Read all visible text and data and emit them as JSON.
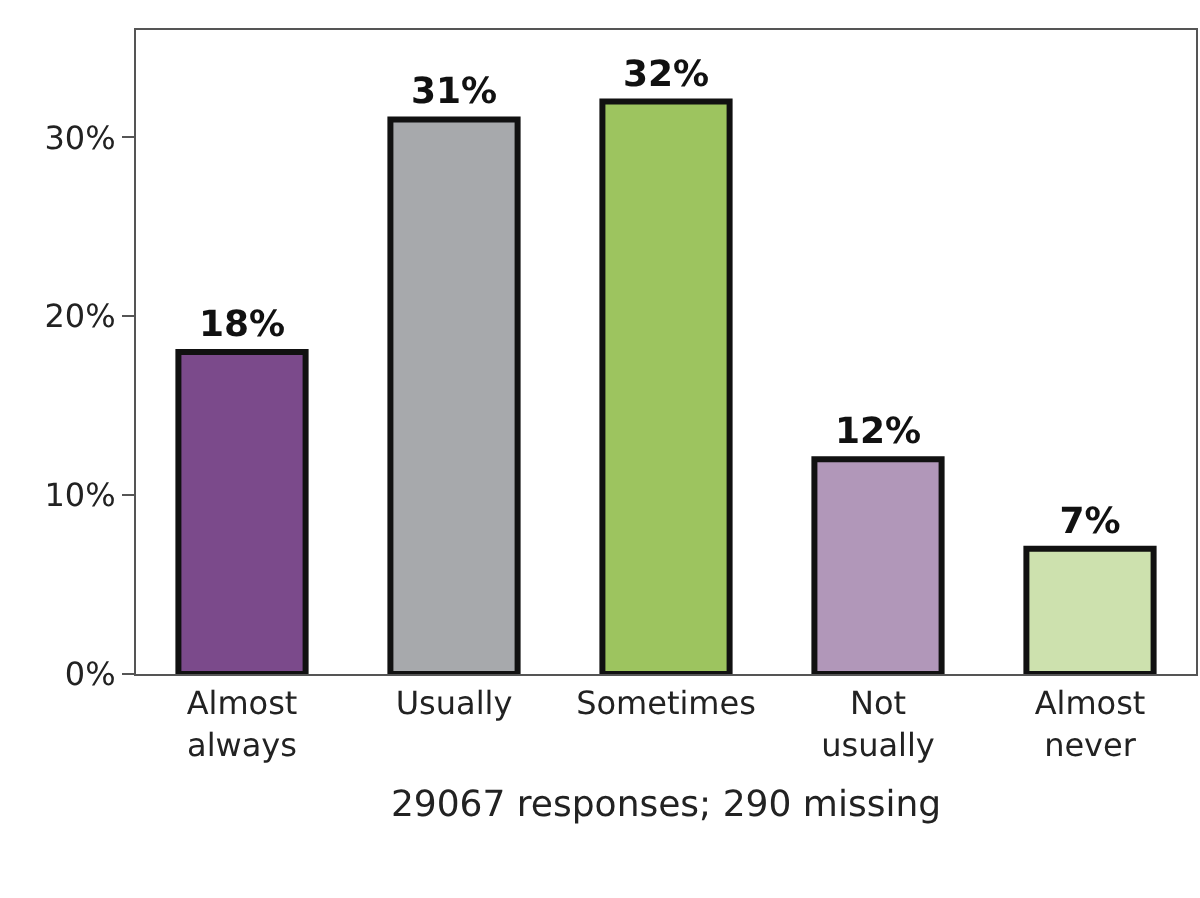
{
  "chart_data": {
    "type": "bar",
    "xlabel": "29067 responses; 290 missing",
    "categories": [
      "Almost always",
      "Usually",
      "Sometimes",
      "Not usually",
      "Almost never"
    ],
    "values": [
      18,
      31,
      32,
      12,
      7
    ],
    "colors": [
      "#7b4a8b",
      "#a7a9ac",
      "#9dc45f",
      "#b197b9",
      "#cde1ae"
    ],
    "value_labels": [
      "18%",
      "31%",
      "32%",
      "12%",
      "7%"
    ],
    "ylim": [
      0,
      36
    ],
    "yticks": [
      {
        "value": 0,
        "label": "0%"
      },
      {
        "value": 10,
        "label": "10%"
      },
      {
        "value": 20,
        "label": "20%"
      },
      {
        "value": 30,
        "label": "30%"
      }
    ],
    "grid": false
  }
}
